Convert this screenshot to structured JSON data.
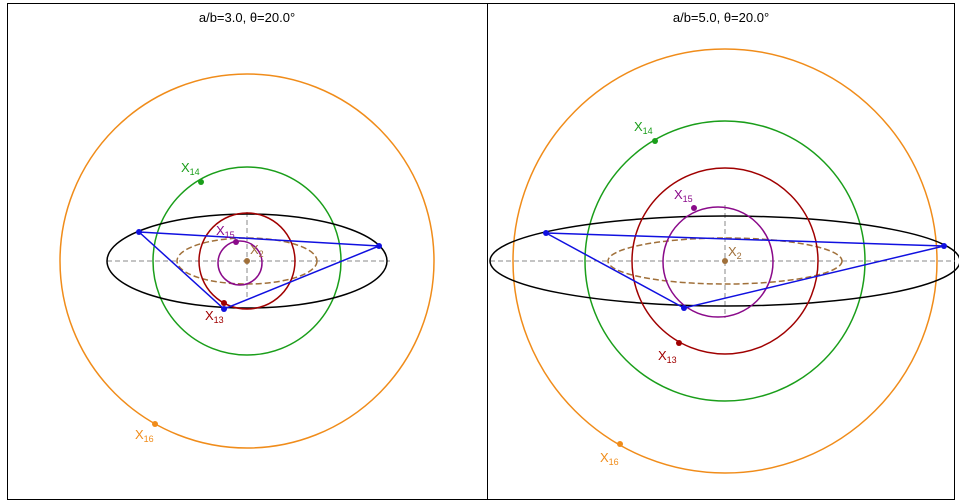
{
  "panels": [
    {
      "title": "a/b=3.0, θ=20.0°",
      "labels": [
        {
          "name": "X",
          "sub": "14"
        },
        {
          "name": "X",
          "sub": "15"
        },
        {
          "name": "X",
          "sub": "2"
        },
        {
          "name": "X",
          "sub": "13"
        },
        {
          "name": "X",
          "sub": "16"
        }
      ]
    },
    {
      "title": "a/b=5.0, θ=20.0°",
      "labels": [
        {
          "name": "X",
          "sub": "14"
        },
        {
          "name": "X",
          "sub": "15"
        },
        {
          "name": "X",
          "sub": "2"
        },
        {
          "name": "X",
          "sub": "13"
        },
        {
          "name": "X",
          "sub": "16"
        }
      ]
    }
  ]
}
